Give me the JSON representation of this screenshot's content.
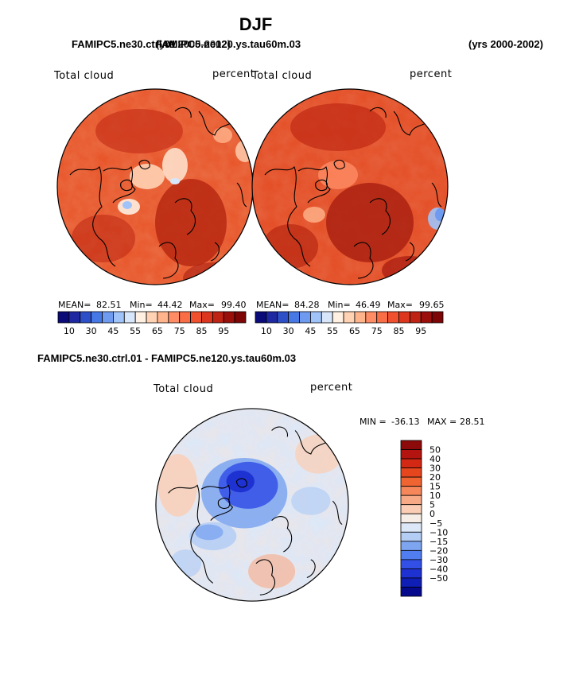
{
  "title": "DJF",
  "header": {
    "left_overlapped_a": "FAMIPC5.ne30.ctrl.01",
    "left_overlapped_b": "FAMIPC5.ne120.ys.tau60m.03",
    "left_overlapped_years": "(yrs 2000-2002)",
    "right_years": "(yrs 2000-2002)"
  },
  "diff_title": "FAMIPC5.ne30.ctrl.01 - FAMIPC5.ne120.ys.tau60m.03",
  "chart_data": [
    {
      "type": "heatmap",
      "projection": "north polar stereographic",
      "case": "FAMIPC5.ne30.ctrl.01",
      "variable": "Total cloud",
      "units": "percent",
      "mean_label": "MEAN=",
      "mean": "82.51",
      "min_label": "Min=",
      "min": "44.42",
      "max_label": "Max=",
      "max": "99.40",
      "colorbar_ticks": [
        "10",
        "30",
        "45",
        "55",
        "65",
        "75",
        "85",
        "95"
      ],
      "colorbar_colors": [
        "#0a0a78",
        "#1e28a0",
        "#2d50c8",
        "#4678e6",
        "#6e9bf0",
        "#a0c3fa",
        "#d7e6fa",
        "#fff0e1",
        "#ffd2b4",
        "#ffb48c",
        "#ff8c64",
        "#fa6e46",
        "#f0502d",
        "#dc371e",
        "#be2314",
        "#9b0f0a",
        "#7d0505"
      ]
    },
    {
      "type": "heatmap",
      "projection": "north polar stereographic",
      "case": "FAMIPC5.ne120.ys.tau60m.03",
      "variable": "Total cloud",
      "units": "percent",
      "mean_label": "MEAN=",
      "mean": "84.28",
      "min_label": "Min=",
      "min": "46.49",
      "max_label": "Max=",
      "max": "99.65",
      "colorbar_ticks": [
        "10",
        "30",
        "45",
        "55",
        "65",
        "75",
        "85",
        "95"
      ],
      "colorbar_colors": [
        "#0a0a78",
        "#1e28a0",
        "#2d50c8",
        "#4678e6",
        "#6e9bf0",
        "#a0c3fa",
        "#d7e6fa",
        "#fff0e1",
        "#ffd2b4",
        "#ffb48c",
        "#ff8c64",
        "#fa6e46",
        "#f0502d",
        "#dc371e",
        "#be2314",
        "#9b0f0a",
        "#7d0505"
      ]
    },
    {
      "type": "heatmap",
      "projection": "north polar stereographic",
      "case": "FAMIPC5.ne30.ctrl.01 - FAMIPC5.ne120.ys.tau60m.03",
      "variable": "Total cloud",
      "units": "percent",
      "min_label": "MIN =",
      "min": "-36.13",
      "max_label": "MAX =",
      "max": "28.51",
      "colorbar_ticks": [
        "50",
        "40",
        "30",
        "20",
        "15",
        "10",
        "5",
        "0",
        "−5",
        "−10",
        "−15",
        "−20",
        "−30",
        "−40",
        "−50"
      ],
      "colorbar_colors": [
        "#8c0a0a",
        "#b4140f",
        "#d22814",
        "#e6461e",
        "#f06432",
        "#f5875a",
        "#f8aa87",
        "#fbcdb4",
        "#f5ede6",
        "#dce8f8",
        "#b4cdf5",
        "#7da5f0",
        "#507df0",
        "#3250e6",
        "#1e32d2",
        "#0f1eb4",
        "#050a8c"
      ]
    }
  ]
}
